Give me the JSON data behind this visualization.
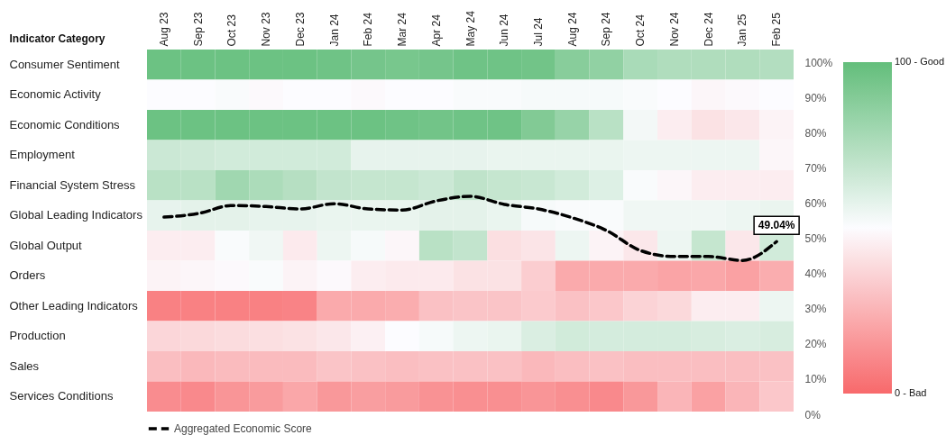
{
  "chart_data": {
    "type": "heatmap",
    "ylabel": "Indicator Category",
    "categories": [
      "Aug 23",
      "Sep 23",
      "Oct 23",
      "Nov 23",
      "Dec 23",
      "Jan 24",
      "Feb 24",
      "Mar 24",
      "Apr 24",
      "May 24",
      "Jun 24",
      "Jul 24",
      "Aug 24",
      "Sep 24",
      "Oct 24",
      "Nov 24",
      "Dec 24",
      "Jan 25",
      "Feb 25"
    ],
    "y_categories": [
      "Consumer Sentiment",
      "Economic Activity",
      "Economic Conditions",
      "Employment",
      "Financial System Stress",
      "Global Leading Indicators",
      "Global Output",
      "Orders",
      "Other Leading Indicators",
      "Production",
      "Sales",
      "Services Conditions"
    ],
    "cells": [
      [
        97,
        97,
        97,
        97,
        97,
        96,
        94,
        93,
        94,
        96,
        96,
        95,
        88,
        85,
        77,
        75,
        75,
        75,
        74
      ],
      [
        50,
        50,
        51,
        49,
        50,
        50,
        49,
        50,
        50,
        51,
        51,
        52,
        52,
        52,
        51,
        50,
        48,
        49,
        50
      ],
      [
        97,
        97,
        97,
        97,
        97,
        97,
        97,
        96,
        95,
        96,
        96,
        90,
        83,
        72,
        53,
        45,
        41,
        43,
        47
      ],
      [
        66,
        65,
        64,
        64,
        64,
        64,
        57,
        57,
        57,
        57,
        56,
        56,
        56,
        56,
        55,
        55,
        55,
        55,
        48
      ],
      [
        72,
        72,
        80,
        76,
        73,
        69,
        68,
        68,
        66,
        70,
        68,
        67,
        64,
        60,
        51,
        48,
        45,
        45,
        45
      ],
      [
        57,
        58,
        58,
        57,
        57,
        56,
        56,
        56,
        58,
        58,
        56,
        52,
        51,
        51,
        54,
        54,
        54,
        55,
        56
      ],
      [
        45,
        45,
        51,
        54,
        44,
        55,
        52,
        48,
        72,
        69,
        40,
        42,
        55,
        47,
        43,
        55,
        68,
        43,
        64
      ],
      [
        47,
        48,
        49,
        51,
        47,
        49,
        45,
        44,
        44,
        41,
        41,
        34,
        22,
        22,
        22,
        20,
        21,
        19,
        23
      ],
      [
        8,
        8,
        8,
        8,
        9,
        22,
        22,
        23,
        30,
        31,
        31,
        33,
        30,
        32,
        36,
        38,
        45,
        45,
        55
      ],
      [
        37,
        38,
        39,
        40,
        41,
        43,
        46,
        50,
        52,
        55,
        56,
        61,
        64,
        63,
        63,
        63,
        62,
        61,
        62
      ],
      [
        29,
        27,
        28,
        28,
        28,
        31,
        30,
        29,
        30,
        30,
        30,
        27,
        29,
        30,
        29,
        29,
        29,
        29,
        30
      ],
      [
        12,
        11,
        15,
        17,
        21,
        16,
        18,
        17,
        14,
        13,
        13,
        15,
        13,
        11,
        16,
        26,
        19,
        26,
        32
      ]
    ],
    "clim": [
      0,
      100
    ],
    "cticks": [
      {
        "value": 0,
        "label": "0 - Bad"
      },
      {
        "value": 100,
        "label": "100 - Good"
      }
    ],
    "series": [
      {
        "name": "Aggregated Economic Score",
        "type": "line",
        "axis": "y2",
        "color": "#000000",
        "line_style": "dashed",
        "values": [
          56,
          57,
          59.3,
          59,
          58.3,
          59.8,
          58.3,
          58,
          60.6,
          61.9,
          59.6,
          58.3,
          55.8,
          52.2,
          46.5,
          44.8,
          44.8,
          43.7,
          49.04
        ],
        "value_labels": [
          null,
          null,
          null,
          null,
          null,
          null,
          null,
          null,
          null,
          null,
          null,
          null,
          null,
          null,
          null,
          null,
          null,
          null,
          "49.04%"
        ]
      }
    ],
    "y2lim": [
      0,
      100
    ],
    "y2ticks": [
      {
        "value": 0,
        "label": "0%"
      },
      {
        "value": 10,
        "label": "10%"
      },
      {
        "value": 20,
        "label": "20%"
      },
      {
        "value": 30,
        "label": "30%"
      },
      {
        "value": 40,
        "label": "40%"
      },
      {
        "value": 50,
        "label": "50%"
      },
      {
        "value": 60,
        "label": "60%"
      },
      {
        "value": 70,
        "label": "70%"
      },
      {
        "value": 80,
        "label": "80%"
      },
      {
        "value": 90,
        "label": "90%"
      },
      {
        "value": 100,
        "label": "100%"
      }
    ],
    "grid": false,
    "legend": "bottom"
  }
}
